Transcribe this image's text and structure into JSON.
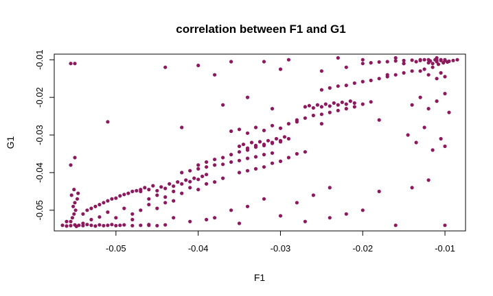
{
  "chart_data": {
    "type": "scatter",
    "title": "correlation between F1 and G1",
    "xlabel": "F1",
    "ylabel": "G1",
    "xlim": [
      -0.0575,
      -0.0075
    ],
    "ylim": [
      -0.0555,
      -0.0085
    ],
    "x_ticks": [
      -0.05,
      -0.04,
      -0.03,
      -0.02,
      -0.01
    ],
    "x_tick_labels": [
      "-0.05",
      "-0.04",
      "-0.03",
      "-0.02",
      "-0.01"
    ],
    "y_ticks": [
      -0.05,
      -0.04,
      -0.03,
      -0.02,
      -0.01
    ],
    "y_tick_labels": [
      "-0.05",
      "-0.04",
      "-0.03",
      "-0.02",
      "-0.01"
    ],
    "grid": false,
    "legend": "none",
    "point_color": "#8B1A5C",
    "series": [
      {
        "x": [
          -0.0565,
          -0.056,
          -0.0555,
          -0.055,
          -0.0548,
          -0.0545,
          -0.054,
          -0.0535,
          -0.053,
          -0.0525,
          -0.052,
          -0.0515,
          -0.051,
          -0.0505,
          -0.05,
          -0.0495,
          -0.049,
          -0.048,
          -0.047,
          -0.046,
          -0.045,
          -0.044,
          -0.0555,
          -0.0553,
          -0.0551,
          -0.0549,
          -0.0552,
          -0.055,
          -0.0547,
          -0.0554,
          -0.0546,
          -0.0551,
          -0.0555,
          -0.055,
          -0.054,
          -0.0535,
          -0.053,
          -0.0525,
          -0.052,
          -0.0515,
          -0.051,
          -0.0505,
          -0.05,
          -0.0495,
          -0.049,
          -0.0485,
          -0.048,
          -0.0475,
          -0.047,
          -0.053,
          -0.052,
          -0.051,
          -0.05,
          -0.049,
          -0.048,
          -0.047,
          -0.046,
          -0.045,
          -0.044,
          -0.043,
          -0.047,
          -0.0465,
          -0.046,
          -0.0455,
          -0.045,
          -0.0445,
          -0.044,
          -0.0435,
          -0.043,
          -0.0425,
          -0.042,
          -0.0415,
          -0.041,
          -0.0405,
          -0.04,
          -0.0395,
          -0.039,
          -0.046,
          -0.045,
          -0.044,
          -0.043,
          -0.042,
          -0.041,
          -0.04,
          -0.039,
          -0.038,
          -0.037,
          -0.042,
          -0.041,
          -0.04,
          -0.039,
          -0.038,
          -0.037,
          -0.036,
          -0.035,
          -0.034,
          -0.033,
          -0.032,
          -0.031,
          -0.04,
          -0.039,
          -0.038,
          -0.037,
          -0.036,
          -0.035,
          -0.034,
          -0.033,
          -0.032,
          -0.031,
          -0.03,
          -0.035,
          -0.0345,
          -0.034,
          -0.0335,
          -0.033,
          -0.0325,
          -0.032,
          -0.0315,
          -0.031,
          -0.0305,
          -0.03,
          -0.0295,
          -0.029,
          -0.036,
          -0.035,
          -0.034,
          -0.033,
          -0.032,
          -0.031,
          -0.03,
          -0.029,
          -0.028,
          -0.035,
          -0.034,
          -0.033,
          -0.032,
          -0.031,
          -0.03,
          -0.029,
          -0.028,
          -0.027,
          -0.027,
          -0.0265,
          -0.026,
          -0.0255,
          -0.025,
          -0.0245,
          -0.024,
          -0.0235,
          -0.023,
          -0.0225,
          -0.022,
          -0.0215,
          -0.021,
          -0.028,
          -0.027,
          -0.026,
          -0.025,
          -0.024,
          -0.023,
          -0.022,
          -0.021,
          -0.02,
          -0.019,
          -0.025,
          -0.024,
          -0.023,
          -0.022,
          -0.021,
          -0.02,
          -0.019,
          -0.018,
          -0.017,
          -0.016,
          -0.015,
          -0.014,
          -0.02,
          -0.019,
          -0.018,
          -0.017,
          -0.016,
          -0.015,
          -0.014,
          -0.013,
          -0.012,
          -0.011,
          -0.01,
          -0.0135,
          -0.013,
          -0.0125,
          -0.012,
          -0.0118,
          -0.0115,
          -0.0112,
          -0.011,
          -0.0108,
          -0.0105,
          -0.0102,
          -0.01,
          -0.0097,
          -0.0095,
          -0.009,
          -0.0085,
          -0.013,
          -0.0125,
          -0.012,
          -0.0115,
          -0.011,
          -0.0105,
          -0.01,
          -0.014,
          -0.013,
          -0.012,
          -0.011,
          -0.01,
          -0.0095,
          -0.0145,
          -0.0135,
          -0.0125,
          -0.0115,
          -0.0105,
          -0.01,
          -0.036,
          -0.032,
          -0.029,
          -0.023,
          -0.02,
          -0.016,
          -0.015,
          -0.011,
          -0.0105,
          -0.0555,
          -0.055,
          -0.051,
          -0.042,
          -0.037,
          -0.034,
          -0.031,
          -0.025,
          -0.018,
          -0.012,
          -0.044,
          -0.04,
          -0.038,
          -0.03,
          -0.025,
          -0.022,
          -0.017,
          -0.015,
          -0.01,
          -0.038,
          -0.036,
          -0.034,
          -0.032,
          -0.028,
          -0.026,
          -0.024,
          -0.022,
          -0.02,
          -0.018,
          -0.016,
          -0.014,
          -0.056,
          -0.054,
          -0.048,
          -0.046,
          -0.043,
          -0.041,
          -0.039,
          -0.035,
          -0.03,
          -0.027,
          -0.024
        ],
        "y": [
          -0.054,
          -0.0542,
          -0.0541,
          -0.0539,
          -0.0543,
          -0.054,
          -0.0541,
          -0.0538,
          -0.054,
          -0.0542,
          -0.0539,
          -0.0541,
          -0.054,
          -0.0538,
          -0.0541,
          -0.054,
          -0.0539,
          -0.0541,
          -0.054,
          -0.0538,
          -0.0541,
          -0.0539,
          -0.053,
          -0.052,
          -0.051,
          -0.05,
          -0.049,
          -0.048,
          -0.047,
          -0.046,
          -0.0455,
          -0.0445,
          -0.011,
          -0.011,
          -0.051,
          -0.05,
          -0.0495,
          -0.049,
          -0.0485,
          -0.048,
          -0.0475,
          -0.047,
          -0.0468,
          -0.0462,
          -0.0458,
          -0.0455,
          -0.045,
          -0.0448,
          -0.0445,
          -0.0525,
          -0.0518,
          -0.0505,
          -0.052,
          -0.0495,
          -0.051,
          -0.05,
          -0.0485,
          -0.0495,
          -0.048,
          -0.0475,
          -0.045,
          -0.044,
          -0.0445,
          -0.0435,
          -0.0448,
          -0.0438,
          -0.0442,
          -0.043,
          -0.0436,
          -0.0425,
          -0.043,
          -0.042,
          -0.0424,
          -0.0415,
          -0.0418,
          -0.041,
          -0.0405,
          -0.047,
          -0.046,
          -0.0465,
          -0.045,
          -0.0455,
          -0.044,
          -0.0445,
          -0.043,
          -0.0425,
          -0.0415,
          -0.04,
          -0.0395,
          -0.039,
          -0.0385,
          -0.038,
          -0.0378,
          -0.0372,
          -0.0368,
          -0.0362,
          -0.0358,
          -0.0352,
          -0.0348,
          -0.038,
          -0.0372,
          -0.0365,
          -0.036,
          -0.0352,
          -0.0345,
          -0.034,
          -0.0332,
          -0.0328,
          -0.032,
          -0.0315,
          -0.033,
          -0.0325,
          -0.0335,
          -0.032,
          -0.0328,
          -0.0318,
          -0.0325,
          -0.0315,
          -0.0322,
          -0.031,
          -0.0318,
          -0.0305,
          -0.031,
          -0.029,
          -0.0285,
          -0.0295,
          -0.028,
          -0.0288,
          -0.0275,
          -0.0282,
          -0.027,
          -0.0265,
          -0.04,
          -0.0395,
          -0.039,
          -0.0385,
          -0.0375,
          -0.037,
          -0.036,
          -0.035,
          -0.0345,
          -0.0225,
          -0.0222,
          -0.0228,
          -0.022,
          -0.0225,
          -0.0218,
          -0.0223,
          -0.0215,
          -0.022,
          -0.0213,
          -0.0218,
          -0.021,
          -0.0215,
          -0.026,
          -0.0255,
          -0.0248,
          -0.0245,
          -0.024,
          -0.0235,
          -0.023,
          -0.0225,
          -0.0218,
          -0.0212,
          -0.018,
          -0.0175,
          -0.017,
          -0.0168,
          -0.0162,
          -0.0158,
          -0.0155,
          -0.015,
          -0.0145,
          -0.014,
          -0.0135,
          -0.013,
          -0.011,
          -0.0108,
          -0.0106,
          -0.0105,
          -0.0103,
          -0.0102,
          -0.0101,
          -0.01,
          -0.01,
          -0.0101,
          -0.0102,
          -0.0105,
          -0.0102,
          -0.01,
          -0.0108,
          -0.0103,
          -0.011,
          -0.01,
          -0.0105,
          -0.0112,
          -0.0102,
          -0.0108,
          -0.01,
          -0.0106,
          -0.0104,
          -0.0102,
          -0.01,
          -0.013,
          -0.0125,
          -0.014,
          -0.012,
          -0.015,
          -0.0135,
          -0.0145,
          -0.022,
          -0.02,
          -0.023,
          -0.021,
          -0.019,
          -0.024,
          -0.03,
          -0.032,
          -0.028,
          -0.034,
          -0.031,
          -0.033,
          -0.0105,
          -0.0105,
          -0.01,
          -0.0095,
          -0.01,
          -0.0095,
          -0.011,
          -0.0095,
          -0.01,
          -0.038,
          -0.036,
          -0.0265,
          -0.028,
          -0.022,
          -0.02,
          -0.023,
          -0.027,
          -0.026,
          -0.042,
          -0.012,
          -0.0115,
          -0.014,
          -0.0125,
          -0.013,
          -0.012,
          -0.014,
          -0.011,
          -0.054,
          -0.052,
          -0.05,
          -0.049,
          -0.047,
          -0.048,
          -0.046,
          -0.044,
          -0.051,
          -0.05,
          -0.045,
          -0.054,
          -0.044,
          -0.053,
          -0.0535,
          -0.0525,
          -0.054,
          -0.052,
          -0.053,
          -0.0525,
          -0.0535,
          -0.0515,
          -0.053,
          -0.052
        ]
      }
    ]
  }
}
